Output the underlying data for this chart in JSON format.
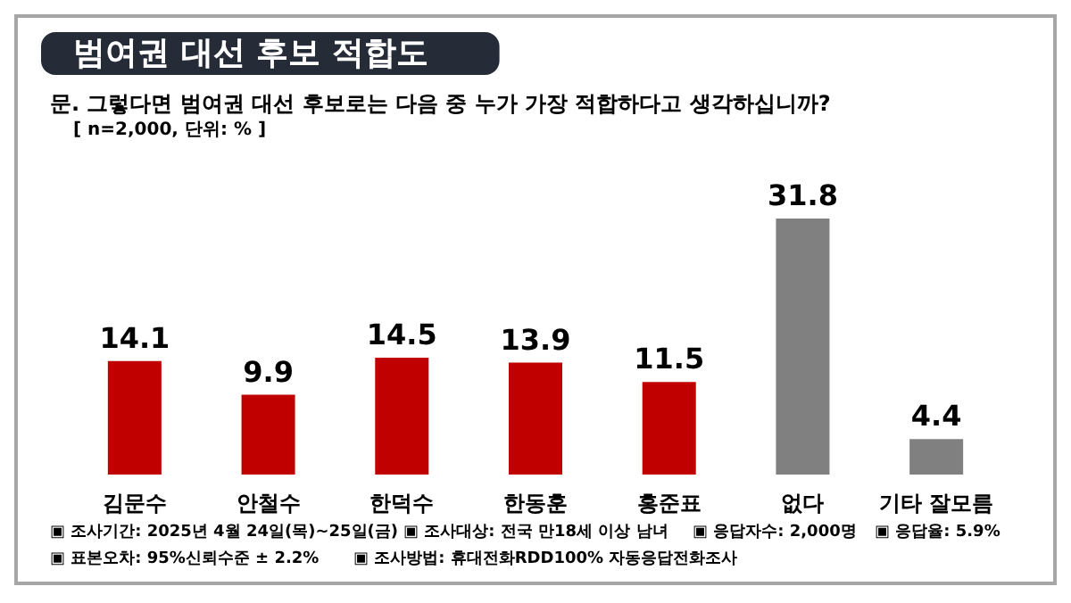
{
  "chart_data": {
    "type": "bar",
    "title": "범여권 대선 후보 적합도",
    "subtitle": "문. 그렇다면 범여권 대선 후보로는 다음 중 누가 가장 적합하다고 생각하십니까?",
    "categories": [
      "김문수",
      "안철수",
      "한덕수",
      "한동훈",
      "홍준표",
      "없다",
      "기타 잘모름"
    ],
    "values": [
      14.1,
      9.9,
      14.5,
      13.9,
      11.5,
      31.8,
      4.4
    ],
    "colors": [
      "#c00000",
      "#c00000",
      "#c00000",
      "#c00000",
      "#c00000",
      "#808080",
      "#808080"
    ],
    "data_labels": true,
    "annotations": [
      "[ n=2,000, 단위: % ]",
      "▣ 조사기간: 2025년 4월 24일(목)~25일(금)",
      "▣ 조사대상: 전국 만18세 이상 남녀",
      "▣ 응답자수: 2,000명",
      "▣ 응답율: 5.9%",
      "▣ 표본오차: 95%신뢰수준 ± 2.2%",
      "▣ 조사방법: 휴대전화RDD100% 자동응답전화조사"
    ]
  }
}
